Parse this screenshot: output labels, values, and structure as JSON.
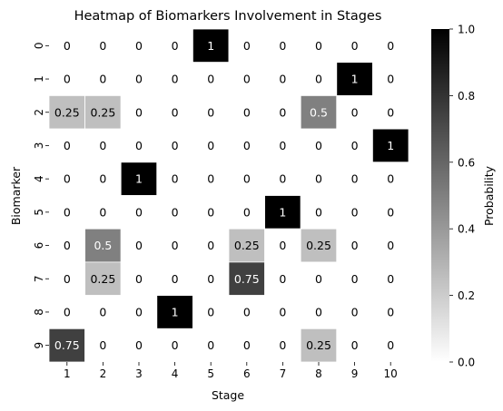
{
  "chart_data": {
    "type": "heatmap",
    "title": "Heatmap of Biomarkers Involvement in Stages",
    "xlabel": "Stage",
    "ylabel": "Biomarker",
    "x_categories": [
      "1",
      "2",
      "3",
      "4",
      "5",
      "6",
      "7",
      "8",
      "9",
      "10"
    ],
    "y_categories": [
      "0",
      "1",
      "2",
      "3",
      "4",
      "5",
      "6",
      "7",
      "8",
      "9"
    ],
    "values": [
      [
        0,
        0,
        0,
        0,
        1,
        0,
        0,
        0,
        0,
        0
      ],
      [
        0,
        0,
        0,
        0,
        0,
        0,
        0,
        0,
        1,
        0
      ],
      [
        0.25,
        0.25,
        0,
        0,
        0,
        0,
        0,
        0.5,
        0,
        0
      ],
      [
        0,
        0,
        0,
        0,
        0,
        0,
        0,
        0,
        0,
        1
      ],
      [
        0,
        0,
        1,
        0,
        0,
        0,
        0,
        0,
        0,
        0
      ],
      [
        0,
        0,
        0,
        0,
        0,
        0,
        1,
        0,
        0,
        0
      ],
      [
        0,
        0.5,
        0,
        0,
        0,
        0.25,
        0,
        0.25,
        0,
        0
      ],
      [
        0,
        0.25,
        0,
        0,
        0,
        0.75,
        0,
        0,
        0,
        0
      ],
      [
        0,
        0,
        0,
        1,
        0,
        0,
        0,
        0,
        0,
        0
      ],
      [
        0.75,
        0,
        0,
        0,
        0,
        0,
        0,
        0.25,
        0,
        0
      ]
    ],
    "colorbar": {
      "label": "Probability",
      "ticks": [
        "0.0",
        "0.2",
        "0.4",
        "0.6",
        "0.8",
        "1.0"
      ],
      "range": [
        0,
        1
      ],
      "colors": [
        "#ffffff",
        "#000000"
      ]
    },
    "grid": "white-lines"
  }
}
